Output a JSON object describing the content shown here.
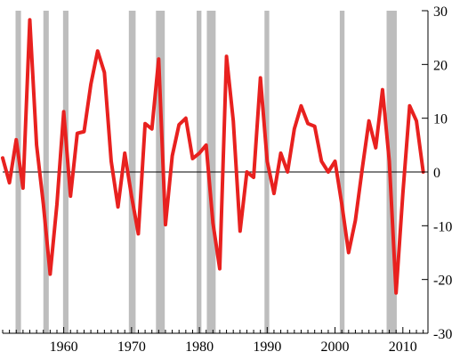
{
  "chart_data": {
    "type": "line",
    "title": "",
    "xlabel": "",
    "ylabel": "",
    "xlim": [
      1951.0,
      2013.7
    ],
    "ylim": [
      -30,
      30
    ],
    "x_ticks": [
      1960,
      1970,
      1980,
      1990,
      2000,
      2010
    ],
    "y_ticks": [
      30,
      20,
      10,
      0,
      -10,
      -20,
      -30
    ],
    "y_tick_labels": [
      "30",
      "20",
      "10",
      "0",
      "-10",
      "-20",
      "-30"
    ],
    "y_axis_side": "right",
    "zero_line": true,
    "grid": false,
    "legend": "none",
    "line_color": "#e8211f",
    "band_color": "#bdbdbd",
    "shaded_periods": [
      [
        1952.9,
        1953.7
      ],
      [
        1957.0,
        1957.8
      ],
      [
        1959.9,
        1960.7
      ],
      [
        1969.6,
        1970.6
      ],
      [
        1973.6,
        1974.9
      ],
      [
        1979.6,
        1980.3
      ],
      [
        1981.1,
        1982.4
      ],
      [
        1989.6,
        1990.3
      ],
      [
        2000.7,
        2001.4
      ],
      [
        2007.6,
        2009.1
      ]
    ],
    "series": [
      {
        "values": [
          [
            1951,
            2.6
          ],
          [
            1952,
            -2.0
          ],
          [
            1953,
            6.0
          ],
          [
            1954,
            -3.0
          ],
          [
            1955,
            28.3
          ],
          [
            1956,
            5.0
          ],
          [
            1957,
            -6.0
          ],
          [
            1958,
            -19.0
          ],
          [
            1959,
            -6.0
          ],
          [
            1960,
            11.2
          ],
          [
            1961,
            -4.5
          ],
          [
            1962,
            7.2
          ],
          [
            1963,
            7.5
          ],
          [
            1964,
            16.3
          ],
          [
            1965,
            22.5
          ],
          [
            1966,
            18.5
          ],
          [
            1967,
            2.0
          ],
          [
            1968,
            -6.5
          ],
          [
            1969,
            3.5
          ],
          [
            1970,
            -4.5
          ],
          [
            1971,
            -11.5
          ],
          [
            1972,
            9.0
          ],
          [
            1973,
            8.0
          ],
          [
            1974,
            21.0
          ],
          [
            1975,
            -9.8
          ],
          [
            1976,
            3.0
          ],
          [
            1977,
            8.8
          ],
          [
            1978,
            10.0
          ],
          [
            1979,
            2.5
          ],
          [
            1980,
            3.5
          ],
          [
            1981,
            5.0
          ],
          [
            1982,
            -9.5
          ],
          [
            1983,
            -18.0
          ],
          [
            1984,
            21.5
          ],
          [
            1985,
            9.5
          ],
          [
            1986,
            -11.0
          ],
          [
            1987,
            0.0
          ],
          [
            1988,
            -1.0
          ],
          [
            1989,
            17.5
          ],
          [
            1990,
            2.0
          ],
          [
            1991,
            -4.0
          ],
          [
            1992,
            3.5
          ],
          [
            1993,
            0.0
          ],
          [
            1994,
            8.0
          ],
          [
            1995,
            12.3
          ],
          [
            1996,
            9.0
          ],
          [
            1997,
            8.5
          ],
          [
            1998,
            2.0
          ],
          [
            1999,
            0.0
          ],
          [
            2000,
            2.0
          ],
          [
            2001,
            -6.0
          ],
          [
            2002,
            -15.0
          ],
          [
            2003,
            -9.0
          ],
          [
            2004,
            0.5
          ],
          [
            2005,
            9.5
          ],
          [
            2006,
            4.5
          ],
          [
            2007,
            15.3
          ],
          [
            2008,
            2.0
          ],
          [
            2009,
            -22.5
          ],
          [
            2010,
            -4.0
          ],
          [
            2011,
            12.3
          ],
          [
            2012,
            9.5
          ],
          [
            2013,
            0.0
          ]
        ]
      }
    ]
  }
}
